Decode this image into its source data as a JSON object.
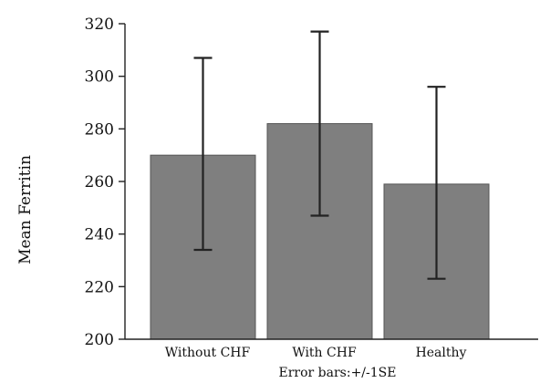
{
  "chart_data": {
    "type": "bar",
    "categories": [
      "Without CHF",
      "With CHF",
      "Healthy"
    ],
    "values": [
      270,
      282,
      259
    ],
    "error_bars": {
      "lower": [
        234,
        247,
        223
      ],
      "upper": [
        307,
        317,
        296
      ]
    },
    "ylabel": "Mean Ferritin",
    "xlabel": "",
    "ylim": [
      200,
      320
    ],
    "yticks": [
      200,
      220,
      240,
      260,
      280,
      300,
      320
    ],
    "note": "Error bars:+/-1SE",
    "grid": false,
    "colors": {
      "bar_fill": "#7f7f7f",
      "bar_stroke": "#555555",
      "error_bar": "#222222",
      "axis": "#222222"
    }
  }
}
